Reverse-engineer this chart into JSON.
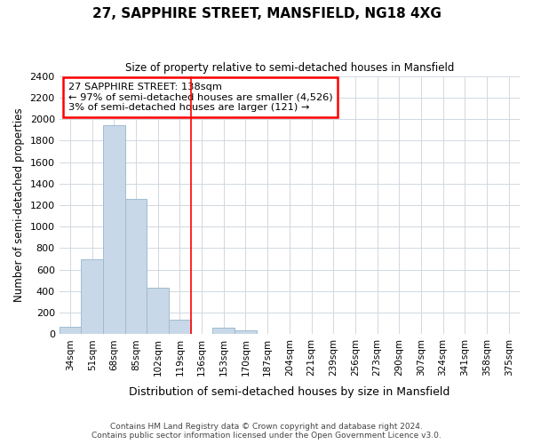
{
  "title": "27, SAPPHIRE STREET, MANSFIELD, NG18 4XG",
  "subtitle": "Size of property relative to semi-detached houses in Mansfield",
  "xlabel": "Distribution of semi-detached houses by size in Mansfield",
  "ylabel": "Number of semi-detached properties",
  "annotation_line1": "27 SAPPHIRE STREET: 138sqm",
  "annotation_line2": "← 97% of semi-detached houses are smaller (4,526)",
  "annotation_line3": "3% of semi-detached houses are larger (121) →",
  "bin_labels": [
    "34sqm",
    "51sqm",
    "68sqm",
    "85sqm",
    "102sqm",
    "119sqm",
    "136sqm",
    "153sqm",
    "170sqm",
    "187sqm",
    "204sqm",
    "221sqm",
    "239sqm",
    "256sqm",
    "273sqm",
    "290sqm",
    "307sqm",
    "324sqm",
    "341sqm",
    "358sqm",
    "375sqm"
  ],
  "bar_heights": [
    70,
    700,
    1940,
    1260,
    430,
    135,
    0,
    60,
    35,
    0,
    0,
    0,
    0,
    0,
    0,
    0,
    0,
    0,
    0,
    0,
    0
  ],
  "bar_color": "#c8d8e8",
  "bar_edge_color": "#a0bcd0",
  "property_line_index": 6,
  "ylim": [
    0,
    2400
  ],
  "yticks": [
    0,
    200,
    400,
    600,
    800,
    1000,
    1200,
    1400,
    1600,
    1800,
    2000,
    2200,
    2400
  ],
  "footnote1": "Contains HM Land Registry data © Crown copyright and database right 2024.",
  "footnote2": "Contains public sector information licensed under the Open Government Licence v3.0.",
  "fig_facecolor": "#ffffff",
  "axes_facecolor": "#ffffff",
  "grid_color": "#d0d8e0"
}
